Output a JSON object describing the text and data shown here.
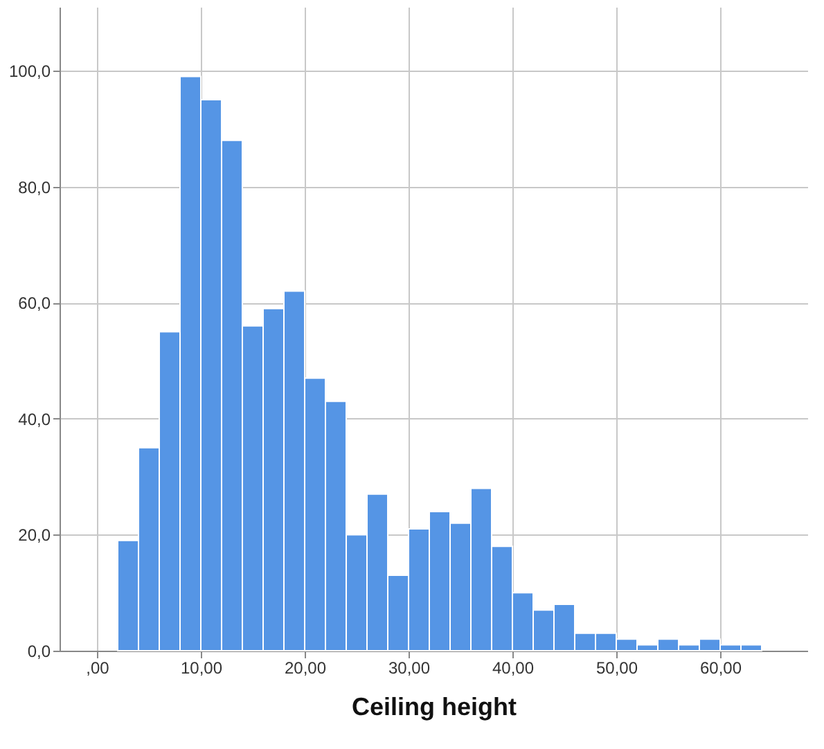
{
  "chart_data": {
    "type": "histogram",
    "xlabel": "Ceiling height",
    "bins": [
      2,
      4,
      6,
      8,
      10,
      12,
      14,
      16,
      18,
      20,
      22,
      24,
      26,
      28,
      30,
      32,
      34,
      36,
      38,
      40,
      42,
      44,
      46,
      48,
      50,
      52,
      54,
      56,
      58,
      60,
      62,
      64
    ],
    "values": [
      19,
      35,
      55,
      99,
      95,
      88,
      56,
      59,
      62,
      47,
      43,
      20,
      27,
      13,
      21,
      24,
      22,
      28,
      18,
      10,
      7,
      8,
      3,
      3,
      2,
      1,
      2,
      1,
      2,
      1,
      1
    ],
    "color": "#5595e5",
    "xlim": [
      -3.6,
      68.4
    ],
    "xticks": [
      {
        "value": 0,
        "label": ",00"
      },
      {
        "value": 10,
        "label": "10,00"
      },
      {
        "value": 20,
        "label": "20,00"
      },
      {
        "value": 30,
        "label": "30,00"
      },
      {
        "value": 40,
        "label": "40,00"
      },
      {
        "value": 50,
        "label": "50,00"
      },
      {
        "value": 60,
        "label": "60,00"
      }
    ],
    "ylim": [
      0,
      111
    ],
    "yticks": [
      {
        "value": 0,
        "label": "0,0"
      },
      {
        "value": 20,
        "label": "20,0"
      },
      {
        "value": 40,
        "label": "40,0"
      },
      {
        "value": 60,
        "label": "60,0"
      },
      {
        "value": 80,
        "label": "80,0"
      },
      {
        "value": 100,
        "label": "100,0"
      }
    ],
    "grid": true
  }
}
